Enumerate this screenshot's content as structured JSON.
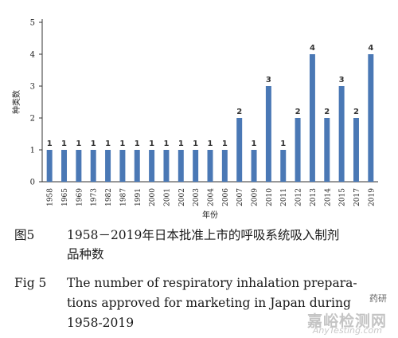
{
  "chart_data": {
    "type": "bar",
    "categories": [
      "1958",
      "1965",
      "1969",
      "1973",
      "1982",
      "1987",
      "1991",
      "2000",
      "2001",
      "2002",
      "2003",
      "2004",
      "2006",
      "2007",
      "2009",
      "2010",
      "2011",
      "2012",
      "2013",
      "2014",
      "2015",
      "2017",
      "2019"
    ],
    "values": [
      1,
      1,
      1,
      1,
      1,
      1,
      1,
      1,
      1,
      1,
      1,
      1,
      1,
      2,
      1,
      3,
      1,
      2,
      4,
      2,
      3,
      2,
      4
    ],
    "title": "",
    "xlabel": "年份",
    "ylabel": "种类数",
    "ylim": [
      0,
      5
    ],
    "yticks": [
      0,
      1,
      2,
      3,
      4,
      5
    ],
    "grid": false,
    "bar_color": "#4a78b5"
  },
  "caption": {
    "zh_label": "图5",
    "zh_text_line1": "1958－2019年日本批准上市的呼吸系统吸入制剂",
    "zh_text_line2": "品种数",
    "en_label": "Fig 5",
    "en_text_line1": "The number of respiratory inhalation prepara-",
    "en_text_line2": "tions approved for marketing in Japan during",
    "en_text_line3": "1958-2019"
  },
  "watermark": {
    "tag": "药研",
    "main": "嘉峪检测网",
    "url": "AnyTesting.com"
  }
}
